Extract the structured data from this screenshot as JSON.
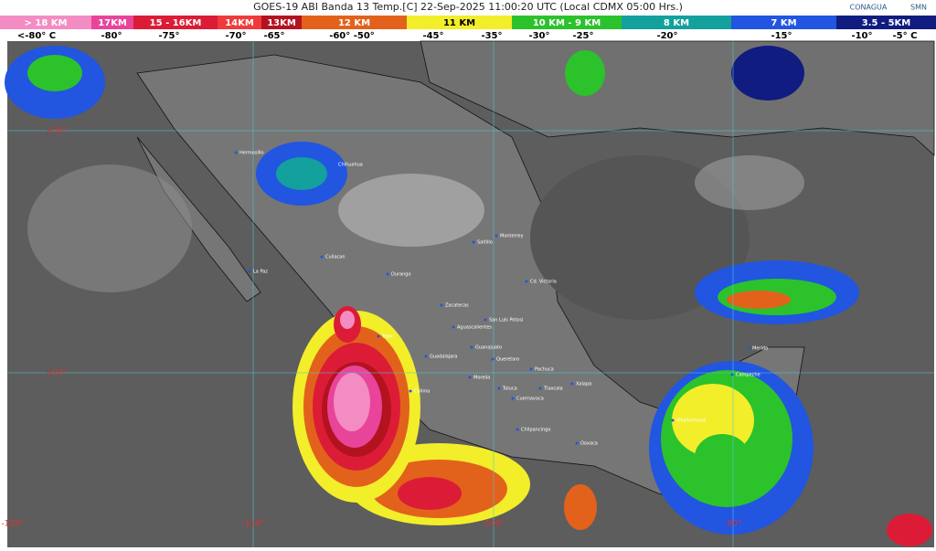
{
  "header": {
    "title": "GOES-19 ABI Banda 13 Temp.[C] 22-Sep-2025 11:00:20 UTC (Local CDMX  05:00 Hrs.)",
    "logos": [
      "CONAGUA",
      "SMN"
    ]
  },
  "legend": [
    {
      "label": "> 18 KM",
      "color": "#f48cc4"
    },
    {
      "label": "17KM",
      "color": "#e8449a"
    },
    {
      "label": "15 - 16KM",
      "color": "#dc1c36"
    },
    {
      "label": "14KM",
      "color": "#ef3b3b"
    },
    {
      "label": "13KM",
      "color": "#b3121f"
    },
    {
      "label": "12 KM",
      "color": "#e2621c"
    },
    {
      "label": "11 KM",
      "color": "#f2ee2a"
    },
    {
      "label": "10 KM - 9 KM",
      "color": "#2cc22c"
    },
    {
      "label": "8 KM",
      "color": "#14a09c"
    },
    {
      "label": "7 KM",
      "color": "#2255e0"
    },
    {
      "label": "3.5 - 5KM",
      "color": "#101c80"
    }
  ],
  "temperatures": [
    "<-80° C",
    "-80°",
    "-75°",
    "-70°",
    "-65°",
    "-60° -50°",
    "-45°",
    "-35°",
    "-30°",
    "-25°",
    "-20°",
    "-15°",
    "-10°",
    "-5° C"
  ],
  "latitudes": [
    "+30°",
    "+20°"
  ],
  "longitudes": [
    "-120°",
    "-110°",
    "-100°",
    "-90°"
  ],
  "cities": [
    "Hermosillo",
    "Chihuahua",
    "La Paz",
    "Culiacan",
    "Durango",
    "Monterrey",
    "Saltillo",
    "Cd. Victoria",
    "Zacatecas",
    "San Luis Potosi",
    "Aguascalientes",
    "Tepic",
    "Guadalajara",
    "Guanajuato",
    "Queretaro",
    "Pachuca",
    "Morelia",
    "Colima",
    "Toluca",
    "Tlaxcala",
    "Xalapa",
    "Cuernavaca",
    "Chilpancingo",
    "Oaxaca",
    "Villahermosa",
    "Campeche",
    "Merida"
  ]
}
